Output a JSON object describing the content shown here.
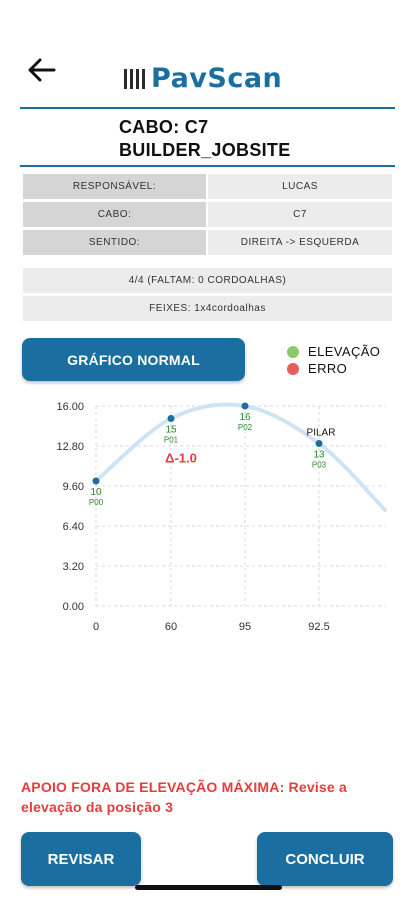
{
  "header": {
    "logo_text": "PavScan",
    "brand_color": "#1b6fa0"
  },
  "cable": {
    "cabo_line": "CABO: C7",
    "jobsite": "BUILDER_JOBSITE"
  },
  "info_rows": [
    {
      "label": "RESPONSÁVEL:",
      "value": "LUCAS"
    },
    {
      "label": "CABO:",
      "value": "C7"
    },
    {
      "label": "SENTIDO:",
      "value": "DIREITA -> ESQUERDA"
    }
  ],
  "progress_text": "4/4 (FALTAM: 0 CORDOALHAS)",
  "feixes_text": "FEIXES:  1x4cordoalhas",
  "chart_button": "GRÁFICO NORMAL",
  "legend": [
    {
      "label": "ELEVAÇÃO",
      "color": "#8bc96a"
    },
    {
      "label": "ERRO",
      "color": "#e85b5b"
    }
  ],
  "chart_data": {
    "type": "line",
    "x_tick_labels": [
      "0",
      "60",
      "95",
      "92.5"
    ],
    "y_ticks": [
      "16.00",
      "12.80",
      "9.60",
      "6.40",
      "3.20",
      "0.00"
    ],
    "ylim": [
      0,
      16
    ],
    "points": [
      {
        "x_index": 0,
        "value": 10,
        "label": "10",
        "pos": "P00"
      },
      {
        "x_index": 1,
        "value": 15,
        "label": "15",
        "pos": "P01"
      },
      {
        "x_index": 2,
        "value": 16,
        "label": "16",
        "pos": "P02"
      },
      {
        "x_index": 3,
        "value": 13,
        "label": "13",
        "pos": "P03"
      }
    ],
    "tail_value": 8,
    "delta_annotation": "Δ-1.0",
    "pilar_label": "PILAR",
    "point_color": "#1b6fa0",
    "curve_color": "#cfe4f2",
    "value_label_color": "#2a8a2a",
    "delta_color": "#e53c3c",
    "grid": true
  },
  "warning_text": "APOIO FORA DE ELEVAÇÃO MÁXIMA: Revise a elevação da posição 3",
  "buttons": {
    "revisar": "REVISAR",
    "concluir": "CONCLUIR"
  }
}
